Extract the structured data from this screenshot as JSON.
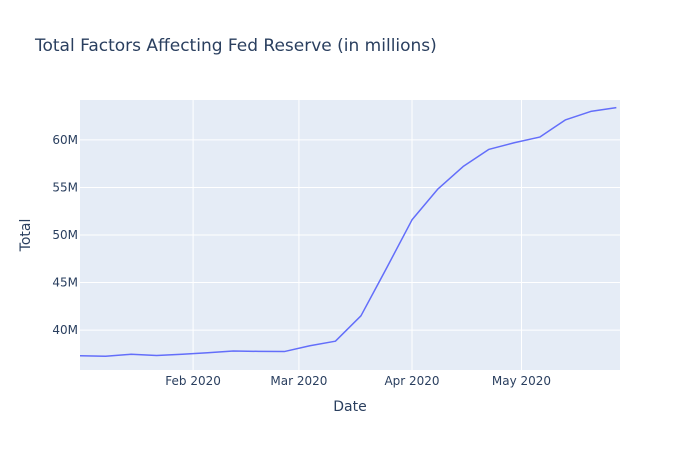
{
  "colors": {
    "plot_background": "#e5ecf6",
    "grid": "#ffffff",
    "line": "#636efa",
    "text": "#2a3f5f"
  },
  "chart_data": {
    "type": "line",
    "title": "Total Factors Affecting Fed Reserve (in millions)",
    "xlabel": "Date",
    "ylabel": "Total",
    "x_ticks": [
      {
        "date": "2020-02-01",
        "label": "Feb 2020"
      },
      {
        "date": "2020-03-01",
        "label": "Mar 2020"
      },
      {
        "date": "2020-04-01",
        "label": "Apr 2020"
      },
      {
        "date": "2020-05-01",
        "label": "May 2020"
      }
    ],
    "y_ticks": [
      {
        "value": 40000000,
        "label": "40M"
      },
      {
        "value": 45000000,
        "label": "45M"
      },
      {
        "value": 50000000,
        "label": "50M"
      },
      {
        "value": 55000000,
        "label": "55M"
      },
      {
        "value": 60000000,
        "label": "60M"
      }
    ],
    "xlim": [
      "2020-01-01",
      "2020-05-28"
    ],
    "ylim": [
      35800000,
      64200000
    ],
    "grid": true,
    "series": [
      {
        "x": [
          "2020-01-01",
          "2020-01-08",
          "2020-01-15",
          "2020-01-22",
          "2020-01-29",
          "2020-02-05",
          "2020-02-12",
          "2020-02-19",
          "2020-02-26",
          "2020-03-04",
          "2020-03-11",
          "2020-03-18",
          "2020-03-25",
          "2020-04-01",
          "2020-04-08",
          "2020-04-15",
          "2020-04-22",
          "2020-04-29",
          "2020-05-06",
          "2020-05-13",
          "2020-05-20",
          "2020-05-27"
        ],
        "y": [
          37300000,
          37250000,
          37450000,
          37330000,
          37450000,
          37620000,
          37800000,
          37760000,
          37740000,
          38350000,
          38830000,
          41500000,
          46500000,
          51600000,
          54800000,
          57200000,
          59000000,
          59700000,
          60300000,
          62100000,
          63000000,
          63400000
        ]
      }
    ]
  }
}
